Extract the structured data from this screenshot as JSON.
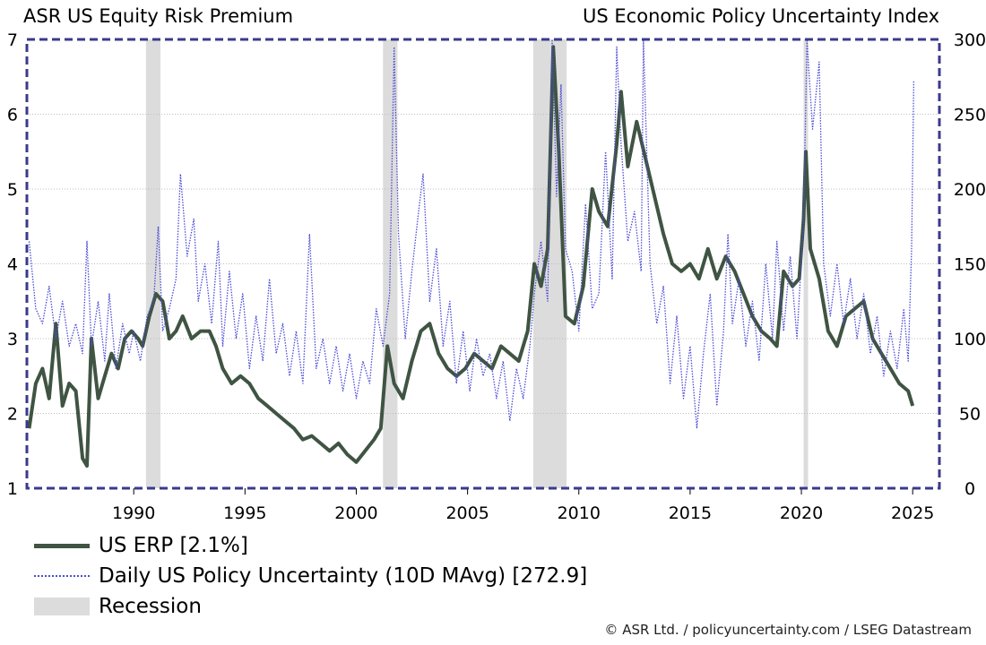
{
  "titles": {
    "left": "ASR US Equity Risk Premium",
    "right": "US Economic Policy Uncertainty Index"
  },
  "footer": "© ASR Ltd.  /  policyuncertainty.com  /  LSEG Datastream",
  "colors": {
    "erp": "#3f5442",
    "epu": "#4b4bd6",
    "frame": "#3a3a8c",
    "recession": "#dcdcdc",
    "grid": "#bdbdbd"
  },
  "legend": [
    {
      "label": "US ERP [2.1%]",
      "icon": "solid-line"
    },
    {
      "label": "Daily US Policy Uncertainty (10D MAvg) [272.9]",
      "icon": "dotted-line"
    },
    {
      "label": "Recession",
      "icon": "grey-box"
    }
  ],
  "chart_data": {
    "type": "line",
    "x_range": [
      1985.2,
      2026.2
    ],
    "x_ticks": [
      1990,
      1995,
      2000,
      2005,
      2010,
      2015,
      2020,
      2025
    ],
    "y_left": {
      "label": "",
      "range": [
        1,
        7
      ],
      "ticks": [
        1,
        2,
        3,
        4,
        5,
        6,
        7
      ]
    },
    "y_right": {
      "label": "",
      "range": [
        0,
        300
      ],
      "ticks": [
        0,
        50,
        100,
        150,
        200,
        250,
        300
      ]
    },
    "grid": "horizontal",
    "recessions": [
      [
        1990.55,
        1991.2
      ],
      [
        2001.2,
        2001.85
      ],
      [
        2007.95,
        2009.45
      ],
      [
        2020.1,
        2020.3
      ]
    ],
    "series": [
      {
        "name": "US ERP [2.1%]",
        "axis": "left",
        "style": "solid",
        "points": [
          [
            1985.3,
            1.8
          ],
          [
            1985.6,
            2.4
          ],
          [
            1985.9,
            2.6
          ],
          [
            1986.2,
            2.2
          ],
          [
            1986.5,
            3.2
          ],
          [
            1986.8,
            2.1
          ],
          [
            1987.1,
            2.4
          ],
          [
            1987.4,
            2.3
          ],
          [
            1987.7,
            1.4
          ],
          [
            1987.9,
            1.3
          ],
          [
            1988.1,
            3.0
          ],
          [
            1988.4,
            2.2
          ],
          [
            1988.7,
            2.5
          ],
          [
            1989.0,
            2.8
          ],
          [
            1989.3,
            2.6
          ],
          [
            1989.6,
            3.0
          ],
          [
            1989.9,
            3.1
          ],
          [
            1990.2,
            3.0
          ],
          [
            1990.4,
            2.9
          ],
          [
            1990.7,
            3.3
          ],
          [
            1991.0,
            3.6
          ],
          [
            1991.3,
            3.5
          ],
          [
            1991.6,
            3.0
          ],
          [
            1991.9,
            3.1
          ],
          [
            1992.2,
            3.3
          ],
          [
            1992.6,
            3.0
          ],
          [
            1993.0,
            3.1
          ],
          [
            1993.4,
            3.1
          ],
          [
            1993.7,
            2.9
          ],
          [
            1994.0,
            2.6
          ],
          [
            1994.4,
            2.4
          ],
          [
            1994.8,
            2.5
          ],
          [
            1995.2,
            2.4
          ],
          [
            1995.6,
            2.2
          ],
          [
            1996.0,
            2.1
          ],
          [
            1996.4,
            2.0
          ],
          [
            1996.8,
            1.9
          ],
          [
            1997.2,
            1.8
          ],
          [
            1997.6,
            1.65
          ],
          [
            1998.0,
            1.7
          ],
          [
            1998.4,
            1.6
          ],
          [
            1998.8,
            1.5
          ],
          [
            1999.2,
            1.6
          ],
          [
            1999.6,
            1.45
          ],
          [
            2000.0,
            1.35
          ],
          [
            2000.4,
            1.5
          ],
          [
            2000.8,
            1.65
          ],
          [
            2001.1,
            1.8
          ],
          [
            2001.4,
            2.9
          ],
          [
            2001.7,
            2.4
          ],
          [
            2002.1,
            2.2
          ],
          [
            2002.5,
            2.7
          ],
          [
            2002.9,
            3.1
          ],
          [
            2003.3,
            3.2
          ],
          [
            2003.7,
            2.8
          ],
          [
            2004.1,
            2.6
          ],
          [
            2004.5,
            2.5
          ],
          [
            2004.9,
            2.6
          ],
          [
            2005.3,
            2.8
          ],
          [
            2005.7,
            2.7
          ],
          [
            2006.1,
            2.6
          ],
          [
            2006.5,
            2.9
          ],
          [
            2006.9,
            2.8
          ],
          [
            2007.3,
            2.7
          ],
          [
            2007.7,
            3.1
          ],
          [
            2008.0,
            4.0
          ],
          [
            2008.3,
            3.7
          ],
          [
            2008.6,
            4.2
          ],
          [
            2008.85,
            6.9
          ],
          [
            2009.1,
            5.5
          ],
          [
            2009.4,
            3.3
          ],
          [
            2009.8,
            3.2
          ],
          [
            2010.2,
            3.7
          ],
          [
            2010.6,
            5.0
          ],
          [
            2010.9,
            4.7
          ],
          [
            2011.3,
            4.5
          ],
          [
            2011.7,
            5.6
          ],
          [
            2011.9,
            6.3
          ],
          [
            2012.2,
            5.3
          ],
          [
            2012.6,
            5.9
          ],
          [
            2013.0,
            5.4
          ],
          [
            2013.4,
            4.9
          ],
          [
            2013.8,
            4.4
          ],
          [
            2014.2,
            4.0
          ],
          [
            2014.6,
            3.9
          ],
          [
            2015.0,
            4.0
          ],
          [
            2015.4,
            3.8
          ],
          [
            2015.8,
            4.2
          ],
          [
            2016.2,
            3.8
          ],
          [
            2016.6,
            4.1
          ],
          [
            2017.0,
            3.9
          ],
          [
            2017.4,
            3.6
          ],
          [
            2017.8,
            3.3
          ],
          [
            2018.2,
            3.1
          ],
          [
            2018.6,
            3.0
          ],
          [
            2018.9,
            2.9
          ],
          [
            2019.2,
            3.9
          ],
          [
            2019.6,
            3.7
          ],
          [
            2019.9,
            3.8
          ],
          [
            2020.1,
            4.6
          ],
          [
            2020.2,
            5.5
          ],
          [
            2020.4,
            4.2
          ],
          [
            2020.8,
            3.8
          ],
          [
            2021.2,
            3.1
          ],
          [
            2021.6,
            2.9
          ],
          [
            2022.0,
            3.3
          ],
          [
            2022.4,
            3.4
          ],
          [
            2022.8,
            3.5
          ],
          [
            2023.2,
            3.0
          ],
          [
            2023.6,
            2.8
          ],
          [
            2024.0,
            2.6
          ],
          [
            2024.4,
            2.4
          ],
          [
            2024.8,
            2.3
          ],
          [
            2025.0,
            2.1
          ]
        ]
      },
      {
        "name": "Daily US Policy Uncertainty (10D MAvg) [272.9]",
        "axis": "right",
        "style": "dotted",
        "points": [
          [
            1985.3,
            165
          ],
          [
            1985.6,
            120
          ],
          [
            1985.9,
            110
          ],
          [
            1986.2,
            135
          ],
          [
            1986.5,
            100
          ],
          [
            1986.8,
            125
          ],
          [
            1987.1,
            95
          ],
          [
            1987.4,
            110
          ],
          [
            1987.7,
            90
          ],
          [
            1987.9,
            165
          ],
          [
            1988.1,
            95
          ],
          [
            1988.4,
            125
          ],
          [
            1988.7,
            85
          ],
          [
            1988.9,
            130
          ],
          [
            1989.2,
            80
          ],
          [
            1989.5,
            110
          ],
          [
            1989.8,
            90
          ],
          [
            1990.0,
            105
          ],
          [
            1990.3,
            85
          ],
          [
            1990.6,
            115
          ],
          [
            1990.9,
            125
          ],
          [
            1991.1,
            175
          ],
          [
            1991.3,
            105
          ],
          [
            1991.6,
            120
          ],
          [
            1991.9,
            140
          ],
          [
            1992.1,
            210
          ],
          [
            1992.4,
            155
          ],
          [
            1992.7,
            180
          ],
          [
            1992.9,
            125
          ],
          [
            1993.2,
            150
          ],
          [
            1993.5,
            110
          ],
          [
            1993.8,
            165
          ],
          [
            1994.0,
            95
          ],
          [
            1994.3,
            145
          ],
          [
            1994.6,
            100
          ],
          [
            1994.9,
            130
          ],
          [
            1995.2,
            80
          ],
          [
            1995.5,
            115
          ],
          [
            1995.8,
            85
          ],
          [
            1996.1,
            140
          ],
          [
            1996.4,
            90
          ],
          [
            1996.7,
            110
          ],
          [
            1997.0,
            75
          ],
          [
            1997.3,
            105
          ],
          [
            1997.6,
            70
          ],
          [
            1997.9,
            170
          ],
          [
            1998.2,
            80
          ],
          [
            1998.5,
            100
          ],
          [
            1998.8,
            70
          ],
          [
            1999.1,
            95
          ],
          [
            1999.4,
            65
          ],
          [
            1999.7,
            90
          ],
          [
            2000.0,
            60
          ],
          [
            2000.3,
            85
          ],
          [
            2000.6,
            70
          ],
          [
            2000.9,
            120
          ],
          [
            2001.2,
            95
          ],
          [
            2001.5,
            130
          ],
          [
            2001.7,
            295
          ],
          [
            2001.9,
            170
          ],
          [
            2002.2,
            100
          ],
          [
            2002.5,
            145
          ],
          [
            2002.8,
            185
          ],
          [
            2003.0,
            210
          ],
          [
            2003.3,
            125
          ],
          [
            2003.6,
            160
          ],
          [
            2003.9,
            95
          ],
          [
            2004.2,
            125
          ],
          [
            2004.5,
            70
          ],
          [
            2004.8,
            105
          ],
          [
            2005.1,
            65
          ],
          [
            2005.4,
            100
          ],
          [
            2005.7,
            75
          ],
          [
            2006.0,
            90
          ],
          [
            2006.3,
            60
          ],
          [
            2006.6,
            85
          ],
          [
            2006.9,
            45
          ],
          [
            2007.2,
            80
          ],
          [
            2007.5,
            60
          ],
          [
            2007.8,
            95
          ],
          [
            2008.0,
            130
          ],
          [
            2008.3,
            165
          ],
          [
            2008.6,
            125
          ],
          [
            2008.8,
            300
          ],
          [
            2009.0,
            195
          ],
          [
            2009.2,
            270
          ],
          [
            2009.4,
            160
          ],
          [
            2009.7,
            145
          ],
          [
            2010.0,
            105
          ],
          [
            2010.3,
            190
          ],
          [
            2010.6,
            120
          ],
          [
            2010.9,
            130
          ],
          [
            2011.2,
            225
          ],
          [
            2011.5,
            140
          ],
          [
            2011.7,
            295
          ],
          [
            2011.9,
            230
          ],
          [
            2012.2,
            165
          ],
          [
            2012.5,
            185
          ],
          [
            2012.8,
            145
          ],
          [
            2012.9,
            300
          ],
          [
            2013.2,
            150
          ],
          [
            2013.5,
            110
          ],
          [
            2013.8,
            135
          ],
          [
            2014.1,
            70
          ],
          [
            2014.4,
            115
          ],
          [
            2014.7,
            60
          ],
          [
            2015.0,
            95
          ],
          [
            2015.3,
            40
          ],
          [
            2015.6,
            90
          ],
          [
            2015.9,
            130
          ],
          [
            2016.2,
            55
          ],
          [
            2016.5,
            105
          ],
          [
            2016.7,
            170
          ],
          [
            2016.9,
            110
          ],
          [
            2017.2,
            140
          ],
          [
            2017.5,
            95
          ],
          [
            2017.8,
            125
          ],
          [
            2018.1,
            85
          ],
          [
            2018.4,
            150
          ],
          [
            2018.7,
            100
          ],
          [
            2018.9,
            165
          ],
          [
            2019.2,
            105
          ],
          [
            2019.5,
            155
          ],
          [
            2019.8,
            100
          ],
          [
            2020.1,
            180
          ],
          [
            2020.25,
            300
          ],
          [
            2020.5,
            240
          ],
          [
            2020.8,
            285
          ],
          [
            2021.0,
            150
          ],
          [
            2021.3,
            115
          ],
          [
            2021.6,
            150
          ],
          [
            2021.9,
            110
          ],
          [
            2022.2,
            140
          ],
          [
            2022.5,
            100
          ],
          [
            2022.8,
            130
          ],
          [
            2023.1,
            90
          ],
          [
            2023.4,
            115
          ],
          [
            2023.7,
            75
          ],
          [
            2024.0,
            105
          ],
          [
            2024.3,
            80
          ],
          [
            2024.6,
            120
          ],
          [
            2024.8,
            85
          ],
          [
            2024.95,
            160
          ],
          [
            2025.05,
            272.9
          ]
        ]
      }
    ]
  }
}
